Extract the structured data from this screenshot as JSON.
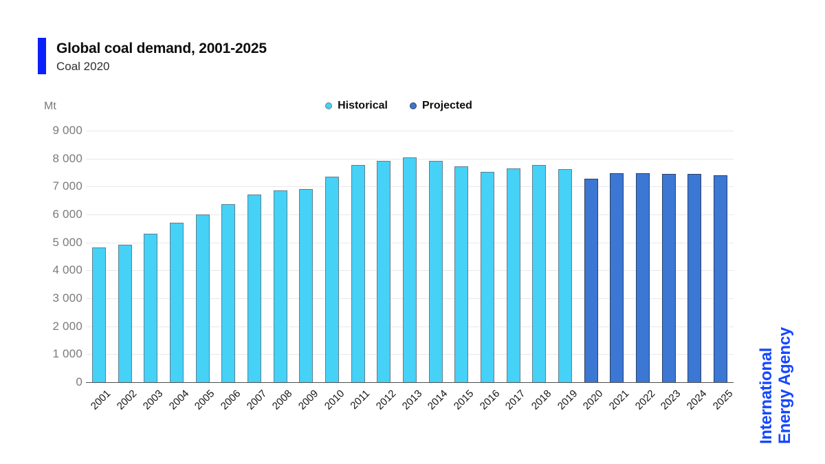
{
  "header": {
    "title": "Global coal demand, 2001-2025",
    "subtitle": "Coal 2020"
  },
  "branding": {
    "line1": "International",
    "line2": "Energy Agency"
  },
  "colors": {
    "accent": "#0b1ffa",
    "brand_blue": "#1547ff",
    "historical_fill": "#46d1f7",
    "historical_stroke": "#5f7e8e",
    "projected_fill": "#3c77d3",
    "projected_stroke": "#2b3f63",
    "gridline": "#e8e8e8",
    "axis_line": "#4d4d4d",
    "tick_text": "#7a7a7a",
    "xtick_text": "#141414"
  },
  "chart_data": {
    "type": "bar",
    "title": "Global coal demand, 2001-2025",
    "subtitle": "Coal 2020",
    "ylabel": "Mt",
    "ylim": [
      0,
      9000
    ],
    "ytick_interval": 1000,
    "yticks": [
      "0",
      "1 000",
      "2 000",
      "3 000",
      "4 000",
      "5 000",
      "6 000",
      "7 000",
      "8 000",
      "9 000"
    ],
    "grid": true,
    "legend_position": "top-center",
    "categories": [
      "2001",
      "2002",
      "2003",
      "2004",
      "2005",
      "2006",
      "2007",
      "2008",
      "2009",
      "2010",
      "2011",
      "2012",
      "2013",
      "2014",
      "2015",
      "2016",
      "2017",
      "2018",
      "2019",
      "2020",
      "2021",
      "2022",
      "2023",
      "2024",
      "2025"
    ],
    "series": [
      {
        "name": "Historical",
        "values": [
          4820,
          4920,
          5310,
          5710,
          6000,
          6360,
          6710,
          6870,
          6910,
          7360,
          7770,
          7910,
          8030,
          7920,
          7720,
          7520,
          7650,
          7770,
          7620,
          null,
          null,
          null,
          null,
          null,
          null
        ]
      },
      {
        "name": "Projected",
        "values": [
          null,
          null,
          null,
          null,
          null,
          null,
          null,
          null,
          null,
          null,
          null,
          null,
          null,
          null,
          null,
          null,
          null,
          null,
          null,
          7280,
          7470,
          7470,
          7460,
          7460,
          7410
        ]
      }
    ]
  }
}
